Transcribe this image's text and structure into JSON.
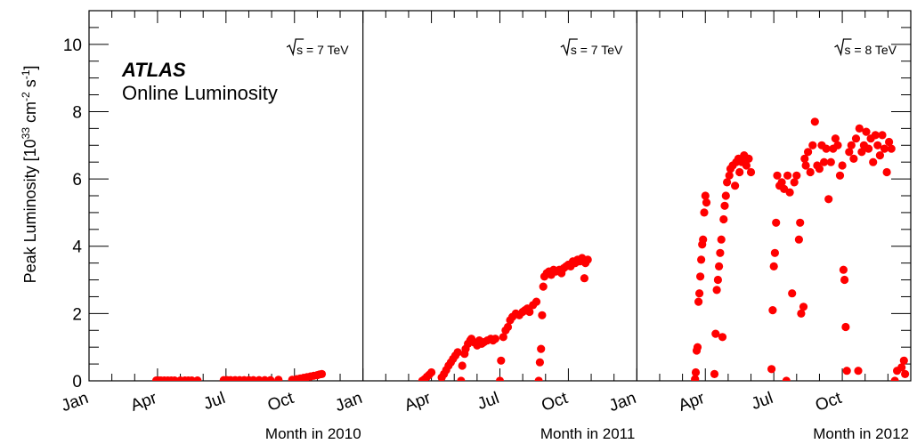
{
  "chart_data": {
    "type": "scatter",
    "ylabel": {
      "main": "Peak Luminosity [10",
      "exp1": "33",
      "mid": " cm",
      "exp2": "-2",
      "mid2": " s",
      "exp3": "-1",
      "end": "]"
    },
    "ylim": [
      0,
      11
    ],
    "yticks": [
      0,
      2,
      4,
      6,
      8,
      10
    ],
    "x_unit": "months since Jan of each year (0 = Jan 1)",
    "series_color": "#ff0000",
    "annotation": {
      "title": "ATLAS",
      "subtitle": "Online Luminosity"
    },
    "panels": [
      {
        "xlabel": "Month in 2010",
        "energy": "s = 7 TeV",
        "month_ticks": [
          {
            "label": "Jan",
            "m": 0
          },
          {
            "label": "Apr",
            "m": 3
          },
          {
            "label": "Jul",
            "m": 6
          },
          {
            "label": "Oct",
            "m": 9
          }
        ],
        "points": [
          [
            2.95,
            0.01
          ],
          [
            3.05,
            0.01
          ],
          [
            3.15,
            0.01
          ],
          [
            3.3,
            0.01
          ],
          [
            3.45,
            0.01
          ],
          [
            3.6,
            0.01
          ],
          [
            3.75,
            0.01
          ],
          [
            4.0,
            0.01
          ],
          [
            4.2,
            0.01
          ],
          [
            4.35,
            0.01
          ],
          [
            4.5,
            0.01
          ],
          [
            4.75,
            0.01
          ],
          [
            5.9,
            0.02
          ],
          [
            6.05,
            0.02
          ],
          [
            6.2,
            0.02
          ],
          [
            6.4,
            0.02
          ],
          [
            6.6,
            0.02
          ],
          [
            6.8,
            0.02
          ],
          [
            7.0,
            0.02
          ],
          [
            7.2,
            0.02
          ],
          [
            7.45,
            0.02
          ],
          [
            7.7,
            0.02
          ],
          [
            7.95,
            0.02
          ],
          [
            8.3,
            0.03
          ],
          [
            8.9,
            0.03
          ],
          [
            9.1,
            0.05
          ],
          [
            9.25,
            0.07
          ],
          [
            9.4,
            0.09
          ],
          [
            9.55,
            0.11
          ],
          [
            9.7,
            0.13
          ],
          [
            9.85,
            0.15
          ],
          [
            10.0,
            0.17
          ],
          [
            10.1,
            0.19
          ],
          [
            10.2,
            0.2
          ]
        ]
      },
      {
        "xlabel": "Month in 2011",
        "energy": "s = 7 TeV",
        "month_ticks": [
          {
            "label": "Jan",
            "m": 0
          },
          {
            "label": "Apr",
            "m": 3
          },
          {
            "label": "Jul",
            "m": 6
          },
          {
            "label": "Oct",
            "m": 9
          }
        ],
        "points": [
          [
            2.6,
            0.0
          ],
          [
            2.7,
            0.05
          ],
          [
            2.8,
            0.12
          ],
          [
            2.9,
            0.18
          ],
          [
            3.0,
            0.25
          ],
          [
            3.45,
            0.1
          ],
          [
            3.55,
            0.2
          ],
          [
            3.65,
            0.32
          ],
          [
            3.75,
            0.45
          ],
          [
            3.85,
            0.55
          ],
          [
            3.95,
            0.65
          ],
          [
            4.05,
            0.75
          ],
          [
            4.15,
            0.85
          ],
          [
            4.3,
            0.0
          ],
          [
            4.35,
            0.45
          ],
          [
            4.45,
            0.8
          ],
          [
            4.5,
            0.95
          ],
          [
            4.6,
            1.1
          ],
          [
            4.7,
            1.2
          ],
          [
            4.75,
            1.25
          ],
          [
            4.85,
            1.15
          ],
          [
            5.0,
            1.05
          ],
          [
            5.1,
            1.2
          ],
          [
            5.2,
            1.1
          ],
          [
            5.3,
            1.15
          ],
          [
            5.45,
            1.2
          ],
          [
            5.6,
            1.25
          ],
          [
            5.7,
            1.2
          ],
          [
            5.8,
            1.25
          ],
          [
            6.0,
            0.0
          ],
          [
            6.05,
            0.6
          ],
          [
            6.15,
            1.3
          ],
          [
            6.25,
            1.5
          ],
          [
            6.35,
            1.6
          ],
          [
            6.45,
            1.8
          ],
          [
            6.55,
            1.9
          ],
          [
            6.7,
            2.0
          ],
          [
            6.85,
            1.95
          ],
          [
            7.0,
            2.05
          ],
          [
            7.1,
            2.1
          ],
          [
            7.2,
            2.15
          ],
          [
            7.3,
            2.05
          ],
          [
            7.45,
            2.25
          ],
          [
            7.6,
            2.35
          ],
          [
            7.7,
            0.0
          ],
          [
            7.75,
            0.55
          ],
          [
            7.8,
            0.95
          ],
          [
            7.85,
            1.95
          ],
          [
            7.9,
            2.8
          ],
          [
            7.95,
            3.1
          ],
          [
            8.05,
            3.2
          ],
          [
            8.15,
            3.25
          ],
          [
            8.25,
            3.15
          ],
          [
            8.35,
            3.3
          ],
          [
            8.45,
            3.25
          ],
          [
            8.6,
            3.3
          ],
          [
            8.7,
            3.2
          ],
          [
            8.8,
            3.35
          ],
          [
            8.9,
            3.4
          ],
          [
            9.0,
            3.45
          ],
          [
            9.1,
            3.4
          ],
          [
            9.2,
            3.55
          ],
          [
            9.3,
            3.5
          ],
          [
            9.4,
            3.6
          ],
          [
            9.5,
            3.55
          ],
          [
            9.6,
            3.65
          ],
          [
            9.7,
            3.05
          ],
          [
            9.75,
            3.5
          ],
          [
            9.85,
            3.6
          ]
        ]
      },
      {
        "xlabel": "Month in 2012",
        "energy": "s = 8 TeV",
        "month_ticks": [
          {
            "label": "Jan",
            "m": 0
          },
          {
            "label": "Apr",
            "m": 3
          },
          {
            "label": "Jul",
            "m": 6
          },
          {
            "label": "Oct",
            "m": 9
          }
        ],
        "points": [
          [
            2.55,
            0.05
          ],
          [
            2.58,
            0.25
          ],
          [
            2.62,
            0.9
          ],
          [
            2.66,
            1.0
          ],
          [
            2.7,
            2.35
          ],
          [
            2.74,
            2.6
          ],
          [
            2.78,
            3.1
          ],
          [
            2.82,
            3.6
          ],
          [
            2.86,
            4.05
          ],
          [
            2.9,
            4.2
          ],
          [
            2.95,
            5.0
          ],
          [
            3.0,
            5.5
          ],
          [
            3.05,
            5.3
          ],
          [
            3.4,
            0.2
          ],
          [
            3.45,
            1.4
          ],
          [
            3.5,
            2.7
          ],
          [
            3.55,
            3.0
          ],
          [
            3.6,
            3.4
          ],
          [
            3.65,
            3.8
          ],
          [
            3.7,
            4.2
          ],
          [
            3.75,
            1.3
          ],
          [
            3.8,
            4.8
          ],
          [
            3.85,
            5.2
          ],
          [
            3.9,
            5.5
          ],
          [
            3.95,
            5.9
          ],
          [
            4.05,
            6.1
          ],
          [
            4.1,
            6.3
          ],
          [
            4.2,
            6.4
          ],
          [
            4.3,
            5.8
          ],
          [
            4.35,
            6.5
          ],
          [
            4.45,
            6.6
          ],
          [
            4.5,
            6.2
          ],
          [
            4.6,
            6.5
          ],
          [
            4.7,
            6.7
          ],
          [
            4.8,
            6.4
          ],
          [
            4.9,
            6.6
          ],
          [
            5.0,
            6.2
          ],
          [
            5.9,
            0.35
          ],
          [
            5.95,
            2.1
          ],
          [
            6.0,
            3.4
          ],
          [
            6.05,
            3.8
          ],
          [
            6.1,
            4.7
          ],
          [
            6.15,
            6.1
          ],
          [
            6.25,
            5.8
          ],
          [
            6.35,
            5.9
          ],
          [
            6.45,
            5.7
          ],
          [
            6.55,
            0.0
          ],
          [
            6.6,
            6.1
          ],
          [
            6.7,
            5.6
          ],
          [
            6.8,
            2.6
          ],
          [
            6.9,
            5.9
          ],
          [
            7.0,
            6.1
          ],
          [
            7.1,
            4.2
          ],
          [
            7.15,
            4.7
          ],
          [
            7.2,
            2.0
          ],
          [
            7.3,
            2.2
          ],
          [
            7.35,
            6.6
          ],
          [
            7.4,
            6.4
          ],
          [
            7.5,
            6.8
          ],
          [
            7.6,
            6.2
          ],
          [
            7.7,
            7.0
          ],
          [
            7.8,
            7.7
          ],
          [
            7.9,
            6.4
          ],
          [
            8.0,
            6.3
          ],
          [
            8.1,
            7.0
          ],
          [
            8.2,
            6.5
          ],
          [
            8.3,
            6.9
          ],
          [
            8.4,
            5.4
          ],
          [
            8.5,
            6.5
          ],
          [
            8.6,
            6.9
          ],
          [
            8.7,
            7.2
          ],
          [
            8.8,
            7.0
          ],
          [
            8.9,
            6.1
          ],
          [
            9.0,
            6.4
          ],
          [
            9.05,
            3.3
          ],
          [
            9.1,
            3.0
          ],
          [
            9.15,
            1.6
          ],
          [
            9.2,
            0.3
          ],
          [
            9.3,
            6.8
          ],
          [
            9.4,
            7.0
          ],
          [
            9.5,
            6.6
          ],
          [
            9.6,
            7.2
          ],
          [
            9.7,
            0.3
          ],
          [
            9.75,
            7.5
          ],
          [
            9.85,
            6.8
          ],
          [
            9.95,
            7.0
          ],
          [
            10.05,
            7.4
          ],
          [
            10.15,
            6.9
          ],
          [
            10.25,
            7.2
          ],
          [
            10.35,
            6.5
          ],
          [
            10.45,
            7.3
          ],
          [
            10.55,
            7.0
          ],
          [
            10.65,
            6.7
          ],
          [
            10.75,
            7.3
          ],
          [
            10.85,
            6.9
          ],
          [
            10.95,
            6.2
          ],
          [
            11.05,
            7.1
          ],
          [
            11.15,
            6.9
          ],
          [
            11.3,
            0.0
          ],
          [
            11.4,
            0.3
          ],
          [
            11.6,
            0.4
          ],
          [
            11.7,
            0.6
          ],
          [
            11.75,
            0.2
          ]
        ]
      }
    ]
  }
}
